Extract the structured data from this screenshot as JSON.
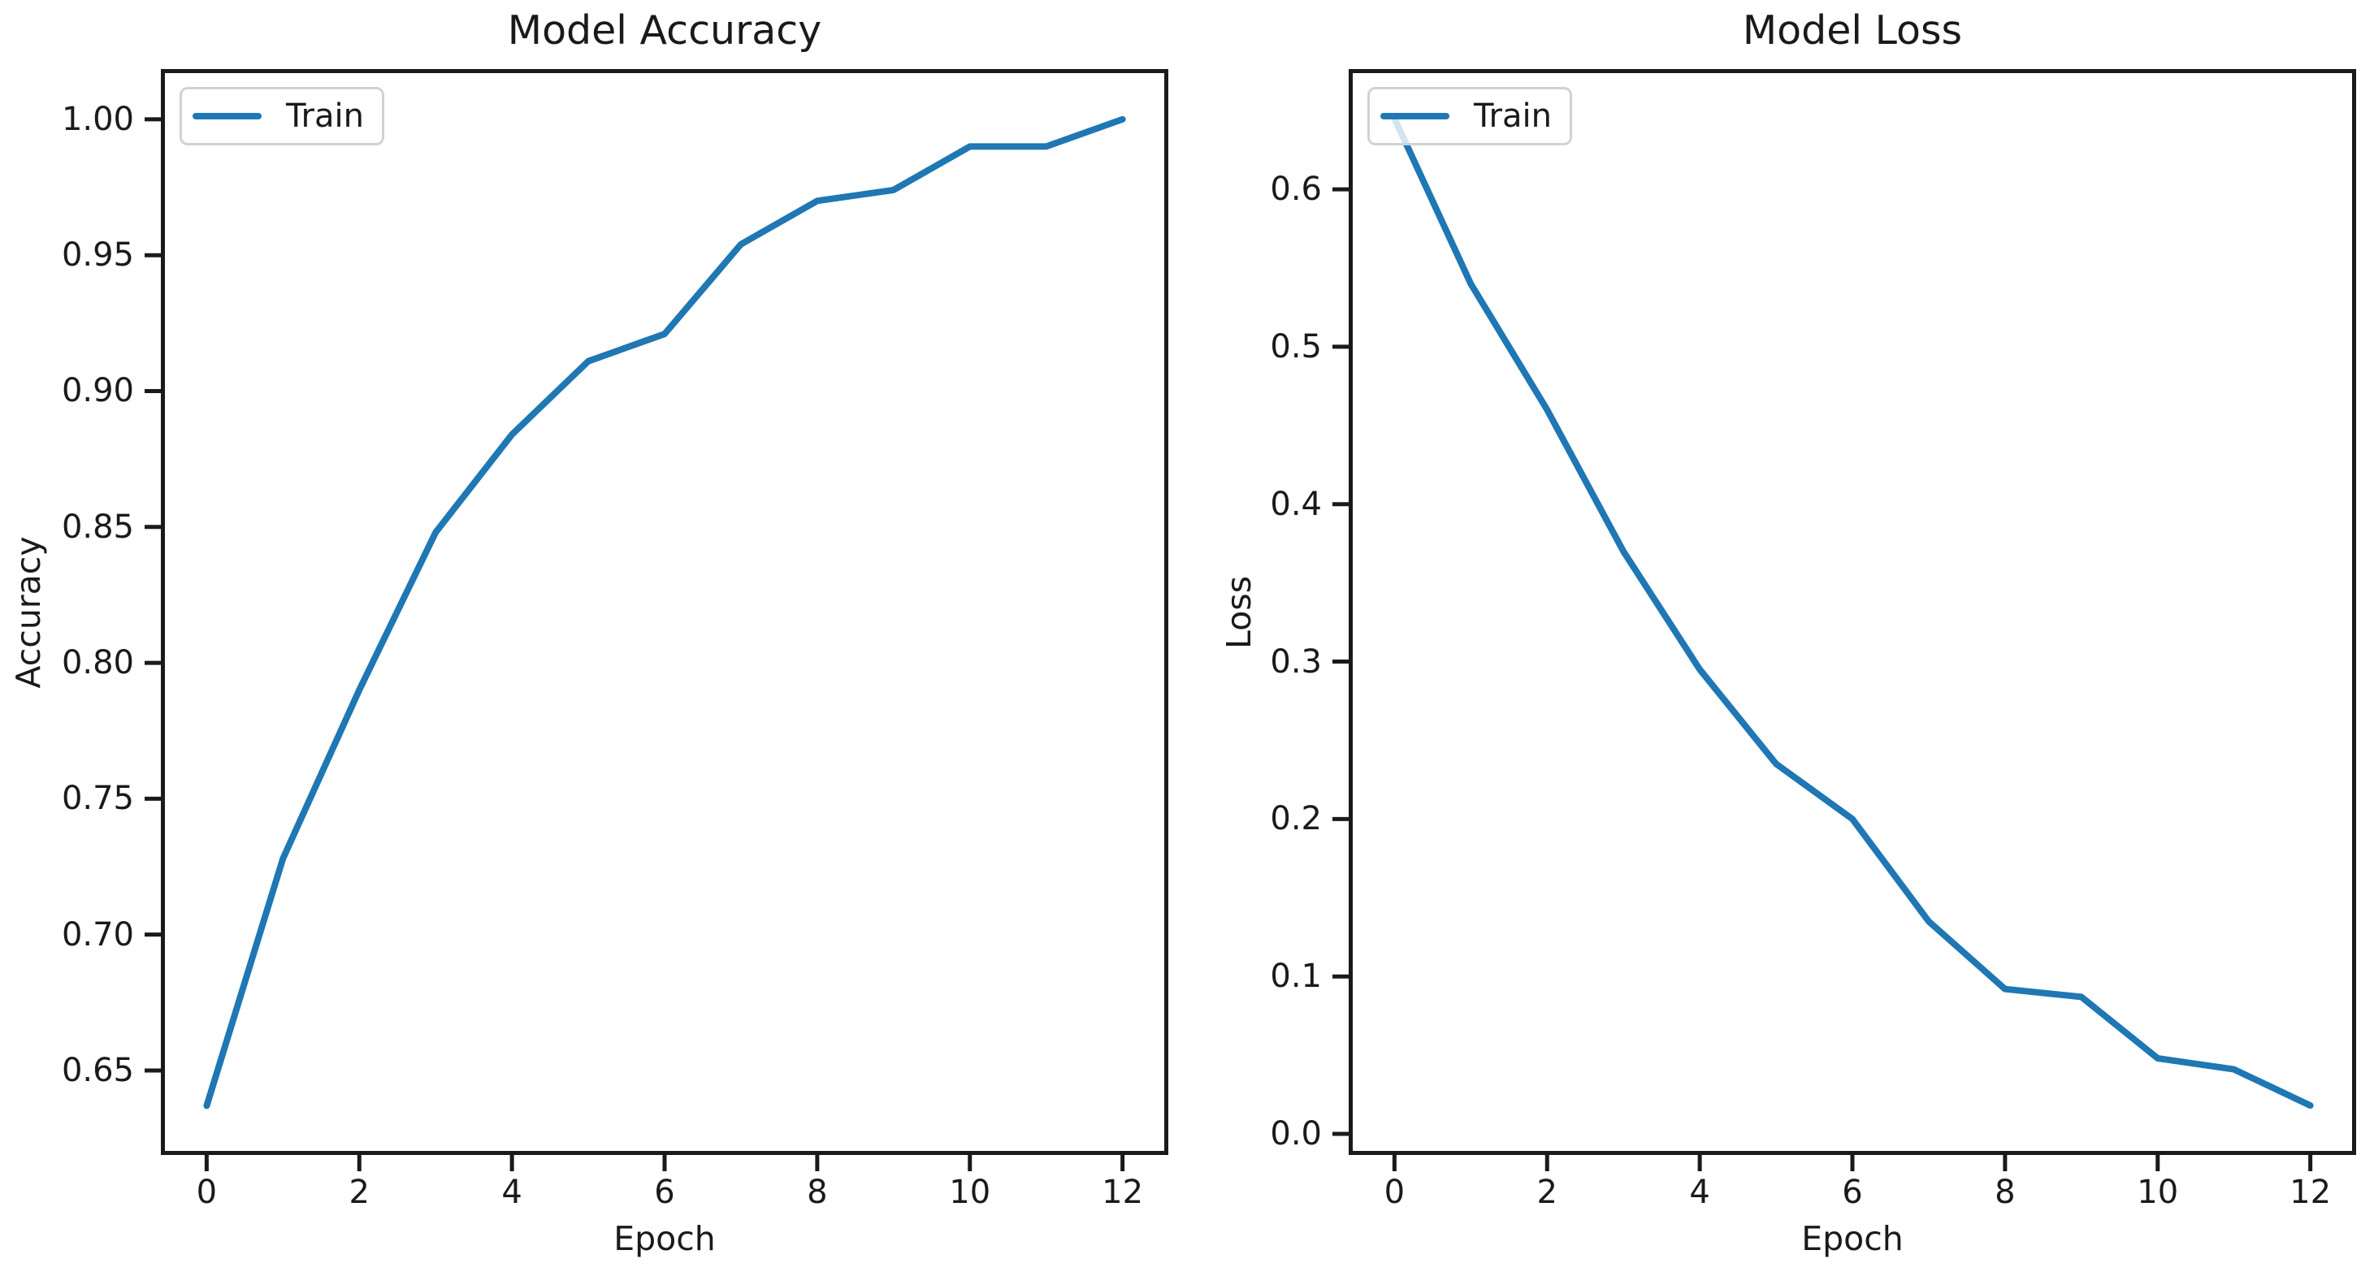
{
  "figure": {
    "background_color": "#ffffff",
    "text_color": "#1a1a1a",
    "axis_color": "#1a1a1a"
  },
  "chart_data": [
    {
      "type": "line",
      "title": "Model Accuracy",
      "xlabel": "Epoch",
      "ylabel": "Accuracy",
      "legend_entries": [
        "Train"
      ],
      "legend_position": "upper left",
      "x": [
        0,
        1,
        2,
        3,
        4,
        5,
        6,
        7,
        8,
        9,
        10,
        11,
        12
      ],
      "series": [
        {
          "name": "Train",
          "color": "#1f77b4",
          "values": [
            0.637,
            0.728,
            0.79,
            0.848,
            0.884,
            0.911,
            0.921,
            0.954,
            0.97,
            0.974,
            0.99,
            0.99,
            1.0
          ]
        }
      ],
      "xlim": [
        -0.6,
        12.6
      ],
      "ylim": [
        0.6189,
        1.0185
      ],
      "xticks": [
        0,
        2,
        4,
        6,
        8,
        10,
        12
      ],
      "xticklabels": [
        "0",
        "2",
        "4",
        "6",
        "8",
        "10",
        "12"
      ],
      "yticks": [
        0.65,
        0.7,
        0.75,
        0.8,
        0.85,
        0.9,
        0.95,
        1.0
      ],
      "yticklabels": [
        "0.65",
        "0.70",
        "0.75",
        "0.80",
        "0.85",
        "0.90",
        "0.95",
        "1.00"
      ],
      "grid": false
    },
    {
      "type": "line",
      "title": "Model Loss",
      "xlabel": "Epoch",
      "ylabel": "Loss",
      "legend_entries": [
        "Train"
      ],
      "legend_position": "upper left",
      "x": [
        0,
        1,
        2,
        3,
        4,
        5,
        6,
        7,
        8,
        9,
        10,
        11,
        12
      ],
      "series": [
        {
          "name": "Train",
          "color": "#1f77b4",
          "values": [
            0.645,
            0.54,
            0.46,
            0.37,
            0.295,
            0.235,
            0.2,
            0.135,
            0.092,
            0.087,
            0.048,
            0.041,
            0.018
          ]
        }
      ],
      "xlim": [
        -0.6,
        12.6
      ],
      "ylim": [
        -0.0134,
        0.6764
      ],
      "xticks": [
        0,
        2,
        4,
        6,
        8,
        10,
        12
      ],
      "xticklabels": [
        "0",
        "2",
        "4",
        "6",
        "8",
        "10",
        "12"
      ],
      "yticks": [
        0.0,
        0.1,
        0.2,
        0.3,
        0.4,
        0.5,
        0.6
      ],
      "yticklabels": [
        "0.0",
        "0.1",
        "0.2",
        "0.3",
        "0.4",
        "0.5",
        "0.6"
      ],
      "grid": false
    }
  ]
}
